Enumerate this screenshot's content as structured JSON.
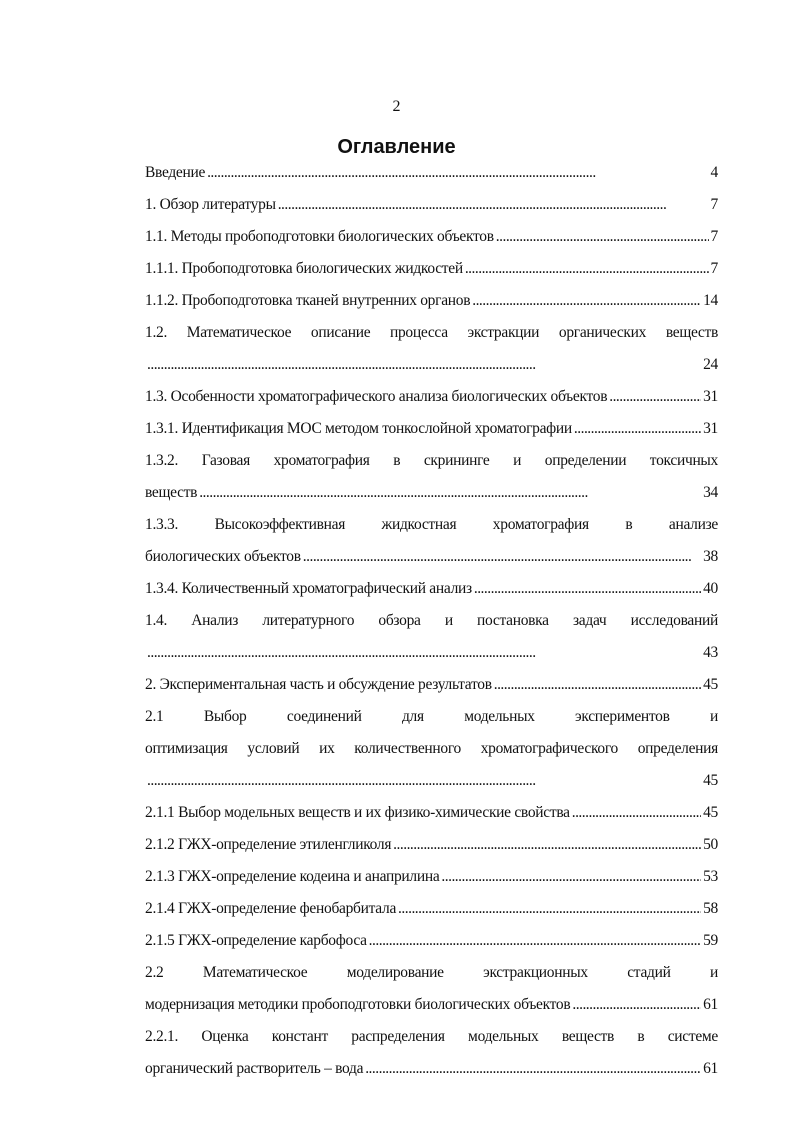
{
  "page_number": "2",
  "title": "Оглавление",
  "entries": [
    {
      "lines": [
        "Введение"
      ],
      "page": "4"
    },
    {
      "lines": [
        "1. Обзор литературы"
      ],
      "page": "7"
    },
    {
      "lines": [
        "1.1. Методы пробоподготовки биологических объектов"
      ],
      "page": "7"
    },
    {
      "lines": [
        "1.1.1. Пробоподготовка биологических жидкостей"
      ],
      "page": "7"
    },
    {
      "lines": [
        "1.1.2. Пробоподготовка тканей внутренних органов"
      ],
      "page": "14"
    },
    {
      "lines": [
        "1.2. Математическое описание процесса экстракции органических веществ",
        ""
      ],
      "page": "24"
    },
    {
      "lines": [
        "1.3. Особенности хроматографического анализа биологических объектов"
      ],
      "page": "31"
    },
    {
      "lines": [
        "1.3.1. Идентификация МОС методом тонкослойной хроматографии"
      ],
      "page": "31"
    },
    {
      "lines": [
        "1.3.2. Газовая хроматография в скрининге и определении токсичных",
        "веществ"
      ],
      "page": "34"
    },
    {
      "lines": [
        "1.3.3. Высокоэффективная жидкостная хроматография в анализе",
        "биологических объектов"
      ],
      "page": "38"
    },
    {
      "lines": [
        "1.3.4. Количественный хроматографический анализ"
      ],
      "page": "40"
    },
    {
      "lines": [
        "1.4. Анализ литературного обзора и постановка задач исследований",
        ""
      ],
      "page": "43"
    },
    {
      "lines": [
        "2. Экспериментальная часть и обсуждение результатов"
      ],
      "page": "45"
    },
    {
      "lines": [
        "2.1 Выбор соединений для модельных экспериментов и",
        "оптимизация условий их количественного хроматографического определения",
        ""
      ],
      "page": "45"
    },
    {
      "lines": [
        "2.1.1 Выбор модельных веществ и их физико-химические свойства"
      ],
      "page": "45"
    },
    {
      "lines": [
        "2.1.2 ГЖХ-определение этиленгликоля"
      ],
      "page": "50"
    },
    {
      "lines": [
        "2.1.3 ГЖХ-определение кодеина и анаприлина"
      ],
      "page": "53"
    },
    {
      "lines": [
        "2.1.4 ГЖХ-определение фенобарбитала"
      ],
      "page": "58"
    },
    {
      "lines": [
        "2.1.5 ГЖХ-определение карбофоса"
      ],
      "page": "59"
    },
    {
      "lines": [
        "2.2 Математическое моделирование экстракционных стадий и",
        "модернизация методики пробоподготовки биологических объектов"
      ],
      "page": "61"
    },
    {
      "lines": [
        "2.2.1. Оценка констант распределения модельных веществ в системе",
        "органический растворитель – вода"
      ],
      "page": "61"
    }
  ]
}
